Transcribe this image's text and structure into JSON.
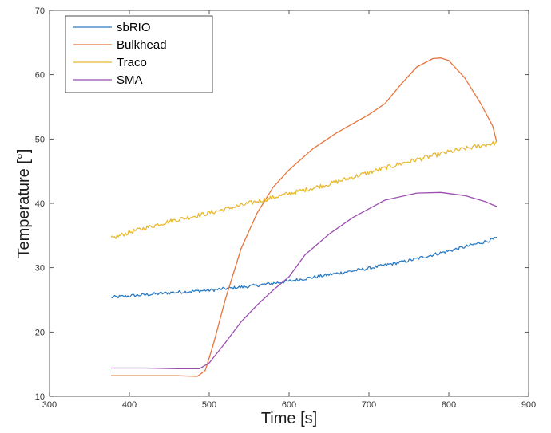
{
  "chart_data": {
    "type": "line",
    "title": "",
    "xlabel": "Time [s]",
    "ylabel": "Temperature [°]",
    "xlim": [
      300,
      900
    ],
    "ylim": [
      10,
      70
    ],
    "xticks": [
      "300",
      "400",
      "500",
      "600",
      "700",
      "800",
      "900"
    ],
    "yticks": [
      "10",
      "20",
      "30",
      "40",
      "50",
      "60",
      "70"
    ],
    "grid": false,
    "legend_position": "top-left",
    "series": [
      {
        "name": "sbRIO",
        "color": "#2a7bc4",
        "noise": 0.25,
        "x": [
          377,
          400,
          450,
          500,
          550,
          600,
          650,
          700,
          750,
          800,
          850,
          860
        ],
        "y": [
          25.4,
          25.6,
          26.1,
          26.5,
          27.1,
          27.9,
          28.9,
          29.9,
          31.1,
          32.6,
          34.2,
          34.6
        ]
      },
      {
        "name": "Bulkhead",
        "color": "#e8743b",
        "noise": 0,
        "x": [
          377,
          420,
          460,
          485,
          495,
          505,
          520,
          540,
          560,
          580,
          600,
          630,
          660,
          700,
          720,
          740,
          760,
          780,
          790,
          800,
          820,
          840,
          855,
          860
        ],
        "y": [
          13.2,
          13.2,
          13.2,
          13.1,
          14.0,
          18.0,
          25.0,
          33.0,
          38.5,
          42.5,
          45.2,
          48.5,
          51.0,
          53.8,
          55.5,
          58.5,
          61.2,
          62.5,
          62.6,
          62.2,
          59.5,
          55.5,
          52.0,
          49.5
        ]
      },
      {
        "name": "Traco",
        "color": "#e8b92c",
        "noise": 0.35,
        "x": [
          377,
          400,
          450,
          500,
          550,
          600,
          650,
          700,
          750,
          800,
          850,
          860
        ],
        "y": [
          34.5,
          35.5,
          37.2,
          38.5,
          40.0,
          41.5,
          43.0,
          44.8,
          46.5,
          48.0,
          49.2,
          49.4
        ]
      },
      {
        "name": "SMA",
        "color": "#9b4eb0",
        "noise": 0,
        "x": [
          377,
          420,
          460,
          488,
          500,
          520,
          540,
          560,
          580,
          600,
          620,
          650,
          680,
          720,
          760,
          790,
          820,
          845,
          860
        ],
        "y": [
          14.4,
          14.4,
          14.3,
          14.3,
          15.2,
          18.3,
          21.6,
          24.2,
          26.5,
          28.6,
          32.0,
          35.2,
          37.8,
          40.5,
          41.6,
          41.7,
          41.2,
          40.3,
          39.5
        ]
      }
    ]
  }
}
